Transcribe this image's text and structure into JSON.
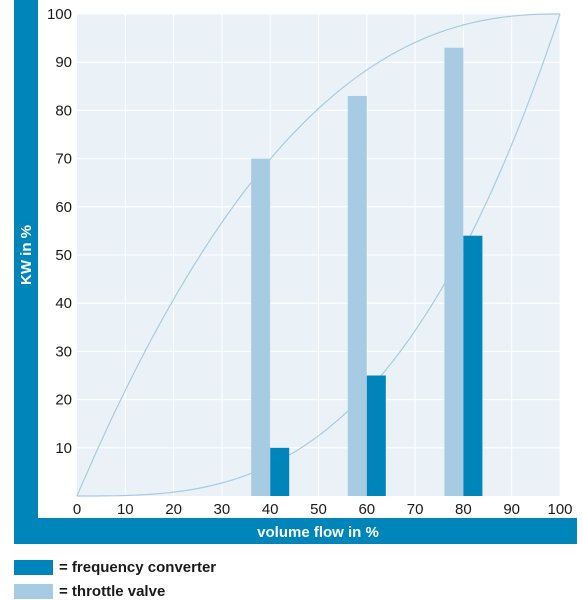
{
  "chart_data": {
    "type": "bar",
    "xlabel": "volume flow in %",
    "ylabel": "KW in %",
    "xlim": [
      0,
      100
    ],
    "ylim": [
      0,
      100
    ],
    "x_ticks": [
      "0",
      "10",
      "20",
      "30",
      "40",
      "50",
      "60",
      "70",
      "80",
      "90",
      "100"
    ],
    "y_ticks": [
      "10",
      "20",
      "30",
      "40",
      "50",
      "60",
      "70",
      "80",
      "90",
      "100"
    ],
    "categories": [
      40,
      60,
      80
    ],
    "series": [
      {
        "name": "= throttle valve",
        "values": [
          70,
          83,
          93
        ],
        "color": "#a7cbe3"
      },
      {
        "name": "= frequency converter",
        "values": [
          10,
          25,
          54
        ],
        "color": "#0085bb"
      }
    ],
    "curves": [
      {
        "type": "concave",
        "x": [
          0,
          10,
          20,
          30,
          40,
          50,
          60,
          70,
          80,
          90,
          100
        ],
        "y": [
          0,
          32,
          49,
          62,
          71,
          78,
          84,
          89,
          94,
          97,
          100
        ]
      },
      {
        "type": "cubic",
        "x": [
          0,
          10,
          20,
          30,
          40,
          50,
          60,
          70,
          80,
          90,
          100
        ],
        "y": [
          0,
          0.1,
          0.8,
          2.7,
          6.4,
          12.5,
          21.6,
          34.3,
          51.2,
          72.9,
          100
        ]
      }
    ],
    "grid": true,
    "legend_position": "bottom-left"
  },
  "colors": {
    "frame": "#0085bb",
    "plot_bg": "#eaf2f8",
    "grid": "#ffffff",
    "curve": "#a7cbe3"
  },
  "legend": {
    "frequency_converter": "= frequency converter",
    "throttle_valve": "= throttle valve"
  }
}
